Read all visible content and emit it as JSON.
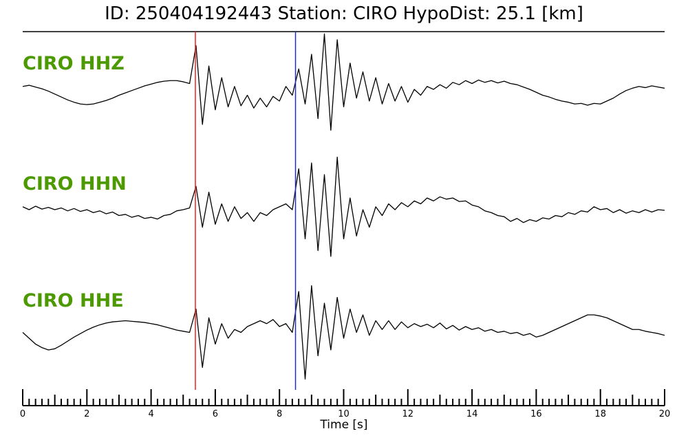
{
  "chart_data": {
    "type": "seismogram",
    "title": "ID: 250404192443   Station: CIRO   HypoDist:     25.1 [km]",
    "xlabel": "Time [s]",
    "label_color": "#4c9a00",
    "xlim": [
      0,
      20
    ],
    "xticks": [
      0,
      2,
      4,
      6,
      8,
      10,
      12,
      14,
      16,
      18,
      20
    ],
    "minor_xticks": [
      0.2,
      0.4,
      0.6,
      0.8,
      1,
      1.2,
      1.4,
      1.6,
      1.8,
      2.2,
      2.4,
      2.6,
      2.8,
      3,
      3.2,
      3.4,
      3.6,
      3.8,
      4.2,
      4.4,
      4.6,
      4.8,
      5,
      5.2,
      5.4,
      5.6,
      5.8,
      6.2,
      6.4,
      6.6,
      6.8,
      7,
      7.2,
      7.4,
      7.6,
      7.8,
      8.2,
      8.4,
      8.6,
      8.8,
      9,
      9.2,
      9.4,
      9.6,
      9.8,
      10.2,
      10.4,
      10.6,
      10.8,
      11,
      11.2,
      11.4,
      11.6,
      11.8,
      12.2,
      12.4,
      12.6,
      12.8,
      13,
      13.2,
      13.4,
      13.6,
      13.8,
      14.2,
      14.4,
      14.6,
      14.8,
      15,
      15.2,
      15.4,
      15.6,
      15.8,
      16.2,
      16.4,
      16.6,
      16.8,
      17,
      17.2,
      17.4,
      17.6,
      17.8,
      18.2,
      18.4,
      18.6,
      18.8,
      19,
      19.2,
      19.4,
      19.6,
      19.8
    ],
    "picks": [
      {
        "time": 5.38,
        "color": "#e8211d"
      },
      {
        "time": 8.5,
        "color": "#1c2fb4"
      }
    ],
    "ylim": [
      -1,
      1
    ],
    "x": [
      0,
      0.2,
      0.4,
      0.6,
      0.8,
      1,
      1.2,
      1.4,
      1.6,
      1.8,
      2,
      2.2,
      2.4,
      2.6,
      2.8,
      3,
      3.2,
      3.4,
      3.6,
      3.8,
      4,
      4.2,
      4.4,
      4.6,
      4.8,
      5,
      5.2,
      5.4,
      5.6,
      5.8,
      6,
      6.2,
      6.4,
      6.6,
      6.8,
      7,
      7.2,
      7.4,
      7.6,
      7.8,
      8,
      8.2,
      8.4,
      8.6,
      8.8,
      9,
      9.2,
      9.4,
      9.6,
      9.8,
      10,
      10.2,
      10.4,
      10.6,
      10.8,
      11,
      11.2,
      11.4,
      11.6,
      11.8,
      12,
      12.2,
      12.4,
      12.6,
      12.8,
      13,
      13.2,
      13.4,
      13.6,
      13.8,
      14,
      14.2,
      14.4,
      14.6,
      14.8,
      15,
      15.2,
      15.4,
      15.6,
      15.8,
      16,
      16.2,
      16.4,
      16.6,
      16.8,
      17,
      17.2,
      17.4,
      17.6,
      17.8,
      18,
      18.2,
      18.4,
      18.6,
      18.8,
      19,
      19.2,
      19.4,
      19.6,
      19.8,
      20
    ],
    "series": [
      {
        "name": "CIRO HHZ",
        "color": "#000000",
        "values": [
          0.05,
          0.07,
          0.04,
          0.01,
          -0.03,
          -0.08,
          -0.13,
          -0.18,
          -0.22,
          -0.25,
          -0.26,
          -0.25,
          -0.22,
          -0.19,
          -0.15,
          -0.1,
          -0.06,
          -0.02,
          0.02,
          0.06,
          0.09,
          0.12,
          0.14,
          0.15,
          0.15,
          0.13,
          0.1,
          0.75,
          -0.6,
          0.4,
          -0.35,
          0.2,
          -0.3,
          0.05,
          -0.28,
          -0.1,
          -0.32,
          -0.15,
          -0.3,
          -0.12,
          -0.2,
          0.05,
          -0.1,
          0.35,
          -0.25,
          0.6,
          -0.5,
          0.95,
          -0.7,
          0.85,
          -0.3,
          0.45,
          -0.15,
          0.3,
          -0.2,
          0.2,
          -0.25,
          0.1,
          -0.2,
          0.05,
          -0.22,
          0.0,
          -0.1,
          0.05,
          0.0,
          0.08,
          0.02,
          0.12,
          0.08,
          0.15,
          0.1,
          0.16,
          0.12,
          0.15,
          0.11,
          0.14,
          0.1,
          0.08,
          0.04,
          0.0,
          -0.05,
          -0.1,
          -0.13,
          -0.17,
          -0.2,
          -0.22,
          -0.25,
          -0.24,
          -0.27,
          -0.24,
          -0.25,
          -0.2,
          -0.15,
          -0.08,
          -0.02,
          0.02,
          0.05,
          0.03,
          0.06,
          0.04,
          0.02
        ]
      },
      {
        "name": "CIRO HHN",
        "color": "#000000",
        "values": [
          0.05,
          0.0,
          0.06,
          0.01,
          0.04,
          0.0,
          0.03,
          -0.02,
          0.02,
          -0.03,
          0.0,
          -0.05,
          -0.02,
          -0.07,
          -0.04,
          -0.1,
          -0.08,
          -0.13,
          -0.1,
          -0.15,
          -0.13,
          -0.16,
          -0.1,
          -0.08,
          -0.02,
          0.0,
          0.03,
          0.4,
          -0.3,
          0.3,
          -0.25,
          0.1,
          -0.2,
          0.05,
          -0.15,
          -0.05,
          -0.2,
          -0.05,
          -0.1,
          0.0,
          0.05,
          0.1,
          0.0,
          0.7,
          -0.5,
          0.8,
          -0.7,
          0.6,
          -0.8,
          0.9,
          -0.5,
          0.2,
          -0.45,
          0.0,
          -0.3,
          0.05,
          -0.1,
          0.1,
          0.0,
          0.12,
          0.05,
          0.15,
          0.1,
          0.2,
          0.15,
          0.22,
          0.18,
          0.2,
          0.14,
          0.15,
          0.08,
          0.05,
          -0.02,
          -0.05,
          -0.1,
          -0.12,
          -0.2,
          -0.15,
          -0.22,
          -0.17,
          -0.2,
          -0.14,
          -0.16,
          -0.1,
          -0.12,
          -0.05,
          -0.08,
          -0.02,
          -0.04,
          0.05,
          0.0,
          0.02,
          -0.05,
          0.0,
          -0.06,
          -0.02,
          -0.05,
          0.0,
          -0.04,
          0.0,
          -0.01
        ]
      },
      {
        "name": "CIRO HHE",
        "color": "#000000",
        "values": [
          -0.1,
          -0.2,
          -0.3,
          -0.36,
          -0.4,
          -0.38,
          -0.32,
          -0.25,
          -0.18,
          -0.12,
          -0.06,
          -0.01,
          0.03,
          0.06,
          0.08,
          0.09,
          0.1,
          0.09,
          0.08,
          0.07,
          0.05,
          0.03,
          0.0,
          -0.03,
          -0.06,
          -0.08,
          -0.1,
          0.3,
          -0.7,
          0.15,
          -0.3,
          0.05,
          -0.2,
          -0.05,
          -0.1,
          0.0,
          0.05,
          0.1,
          0.05,
          0.12,
          0.0,
          0.05,
          -0.1,
          0.6,
          -0.9,
          0.7,
          -0.5,
          0.4,
          -0.4,
          0.5,
          -0.2,
          0.3,
          -0.1,
          0.2,
          -0.15,
          0.1,
          -0.05,
          0.1,
          -0.05,
          0.08,
          -0.02,
          0.05,
          0.0,
          0.04,
          -0.02,
          0.06,
          -0.04,
          0.02,
          -0.06,
          0.0,
          -0.05,
          -0.02,
          -0.08,
          -0.05,
          -0.1,
          -0.08,
          -0.12,
          -0.1,
          -0.15,
          -0.12,
          -0.18,
          -0.15,
          -0.1,
          -0.05,
          0.0,
          0.05,
          0.1,
          0.15,
          0.2,
          0.2,
          0.18,
          0.15,
          0.1,
          0.05,
          0.0,
          -0.05,
          -0.05,
          -0.08,
          -0.1,
          -0.12,
          -0.15
        ]
      }
    ]
  }
}
